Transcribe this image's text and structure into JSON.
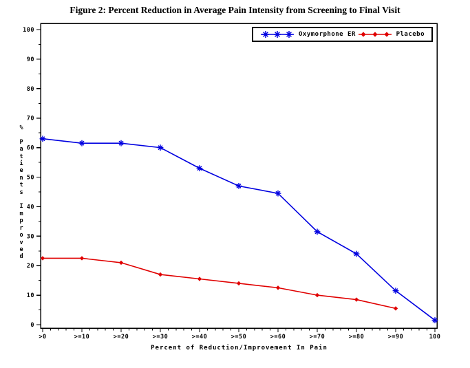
{
  "title": "Figure 2: Percent Reduction in Average Pain Intensity from Screening to Final Visit",
  "chart_data": {
    "type": "line",
    "categories": [
      ">0",
      ">=10",
      ">=20",
      ">=30",
      ">=40",
      ">=50",
      ">=60",
      ">=70",
      ">=80",
      ">=90",
      "100"
    ],
    "series": [
      {
        "name": "Oxymorphone ER",
        "color": "#0000e0",
        "marker": "asterisk",
        "values": [
          63,
          61.5,
          61.5,
          60,
          53,
          47,
          44.5,
          31.5,
          24,
          11.5,
          1.5
        ]
      },
      {
        "name": "Placebo",
        "color": "#e00000",
        "marker": "diamond",
        "values": [
          22.5,
          22.5,
          21,
          17,
          15.5,
          14,
          12.5,
          10,
          8.5,
          5.5,
          null
        ]
      }
    ],
    "xlabel": "Percent of Reduction/Improvement In Pain",
    "ylabel": "% Patients Improved",
    "ylim": [
      0,
      100
    ],
    "yticks": [
      0,
      10,
      20,
      30,
      40,
      50,
      60,
      70,
      80,
      90,
      100
    ],
    "legend_position": "top-right",
    "grid": false,
    "frame": true
  }
}
